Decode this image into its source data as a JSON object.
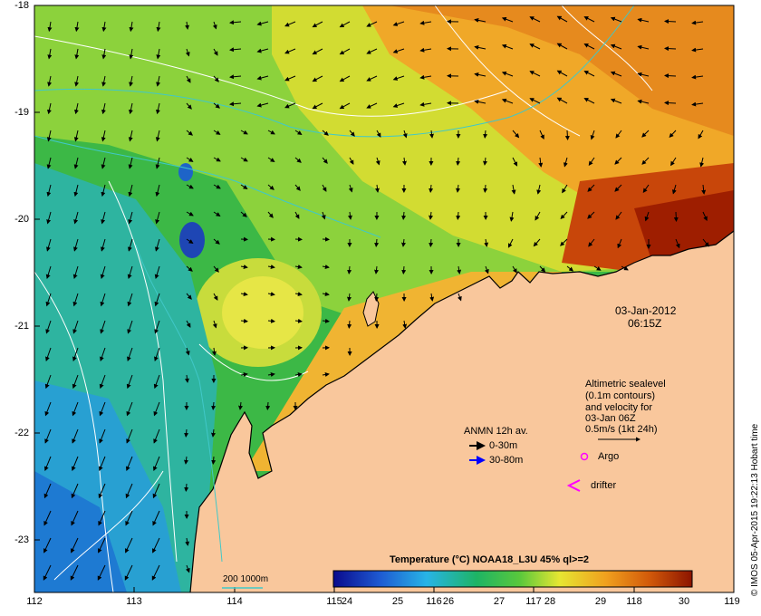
{
  "map": {
    "x_ticks": [
      "112",
      "113",
      "114",
      "115",
      "116",
      "117",
      "118",
      "119"
    ],
    "y_ticks": [
      "-18",
      "-19",
      "-20",
      "-21",
      "-22",
      "-23"
    ],
    "timestamp_date": "03-Jan-2012",
    "timestamp_time": "06:15Z",
    "credit": "© IMOS 05-Apr-2015 19:22:13 Hobart time",
    "land_color": "#f9c79c"
  },
  "legend": {
    "altimetric_lines": [
      "Altimetric sealevel",
      "(0.1m contours)",
      "and velocity for",
      "03-Jan 06Z",
      "0.5m/s (1kt 24h)"
    ],
    "anmn_title": "ANMN 12h av.",
    "anmn_shallow": "0-30m",
    "anmn_deep": "30-80m",
    "argo": "Argo",
    "drifter": "drifter",
    "isobath": "200  1000m",
    "colors": {
      "anmn_shallow": "#000000",
      "anmn_deep": "#0000ff",
      "argo": "#ff00ff",
      "drifter": "#ff00ff",
      "isobath": "#40c8c8"
    }
  },
  "colorbar": {
    "title": "Temperature (°C) NOAA18_L3U 45% ql>=2",
    "ticks": [
      "24",
      "25",
      "26",
      "27",
      "28",
      "29",
      "30"
    ]
  }
}
